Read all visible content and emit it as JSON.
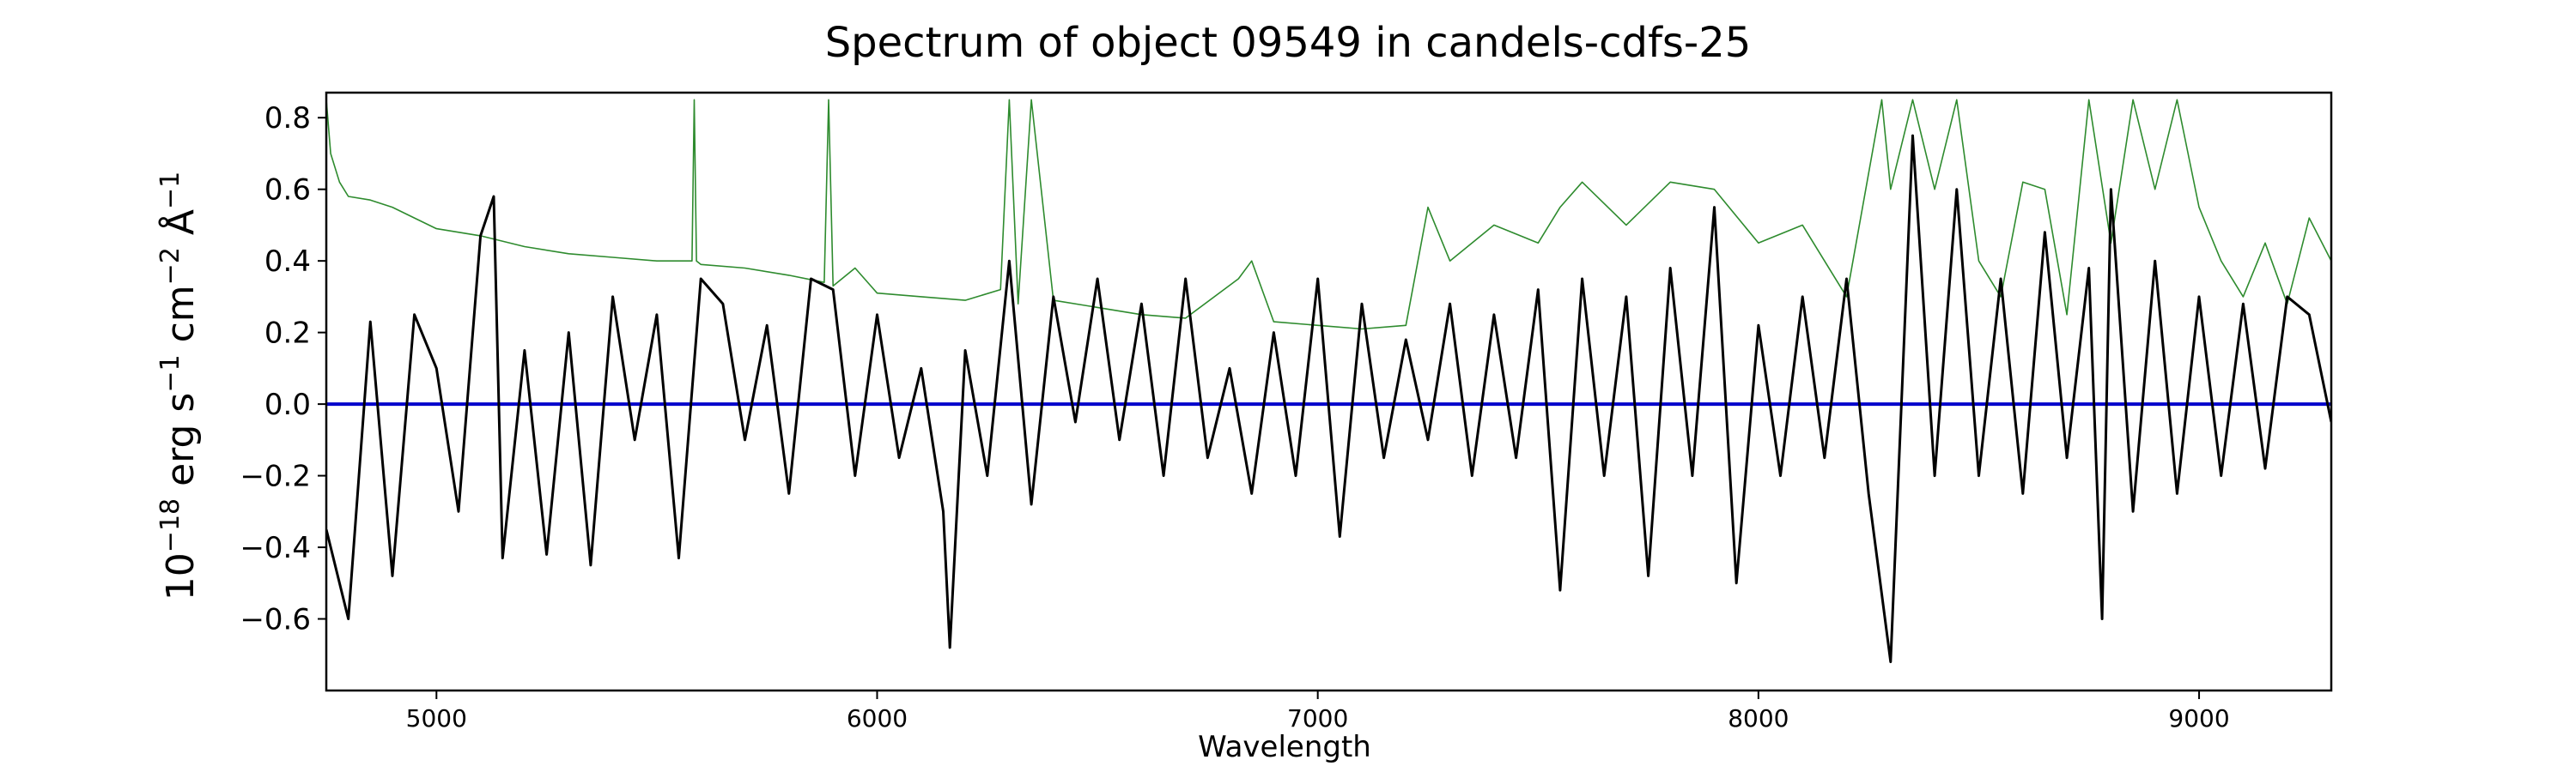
{
  "chart_data": {
    "type": "line",
    "title": "Spectrum of object 09549 in candels-cdfs-25",
    "xlabel": "Wavelength",
    "ylabel_base": "10",
    "ylabel_exp": "−18",
    "ylabel_unit_a": " erg s",
    "ylabel_unit_a_exp": "−1",
    "ylabel_unit_b": " cm",
    "ylabel_unit_b_exp": "−2",
    "ylabel_unit_c": " Å",
    "ylabel_unit_c_exp": "−1",
    "xlim": [
      4750,
      9300
    ],
    "ylim": [
      -0.8,
      0.87
    ],
    "xticks": [
      5000,
      6000,
      7000,
      8000,
      9000
    ],
    "xtick_labels": [
      "5000",
      "6000",
      "7000",
      "8000",
      "9000"
    ],
    "yticks": [
      -0.6,
      -0.4,
      -0.2,
      0.0,
      0.2,
      0.4,
      0.6,
      0.8
    ],
    "ytick_labels": [
      "−0.6",
      "−0.4",
      "−0.2",
      "0.0",
      "0.2",
      "0.4",
      "0.6",
      "0.8"
    ],
    "grid": false,
    "legend": "none",
    "series": [
      {
        "role": "flux",
        "color": "#000000",
        "x": [
          4750,
          4800,
          4850,
          4900,
          4950,
          5000,
          5050,
          5100,
          5130,
          5150,
          5200,
          5250,
          5300,
          5350,
          5400,
          5450,
          5500,
          5550,
          5600,
          5650,
          5700,
          5750,
          5800,
          5850,
          5900,
          5950,
          6000,
          6050,
          6100,
          6150,
          6165,
          6200,
          6250,
          6300,
          6350,
          6400,
          6450,
          6500,
          6550,
          6600,
          6650,
          6700,
          6750,
          6800,
          6850,
          6900,
          6950,
          7000,
          7050,
          7100,
          7150,
          7200,
          7250,
          7300,
          7350,
          7400,
          7450,
          7500,
          7550,
          7600,
          7650,
          7700,
          7750,
          7800,
          7850,
          7900,
          7950,
          8000,
          8050,
          8100,
          8150,
          8200,
          8250,
          8300,
          8350,
          8400,
          8450,
          8500,
          8550,
          8600,
          8650,
          8700,
          8750,
          8780,
          8800,
          8850,
          8900,
          8950,
          9000,
          9050,
          9100,
          9150,
          9200,
          9250,
          9300
        ],
        "y": [
          -0.35,
          -0.6,
          0.23,
          -0.48,
          0.25,
          0.1,
          -0.3,
          0.47,
          0.58,
          -0.43,
          0.15,
          -0.42,
          0.2,
          -0.45,
          0.3,
          -0.1,
          0.25,
          -0.43,
          0.35,
          0.28,
          -0.1,
          0.22,
          -0.25,
          0.35,
          0.32,
          -0.2,
          0.25,
          -0.15,
          0.1,
          -0.3,
          -0.68,
          0.15,
          -0.2,
          0.4,
          -0.28,
          0.3,
          -0.05,
          0.35,
          -0.1,
          0.28,
          -0.2,
          0.35,
          -0.15,
          0.1,
          -0.25,
          0.2,
          -0.2,
          0.35,
          -0.37,
          0.28,
          -0.15,
          0.18,
          -0.1,
          0.28,
          -0.2,
          0.25,
          -0.15,
          0.32,
          -0.52,
          0.35,
          -0.2,
          0.3,
          -0.48,
          0.38,
          -0.2,
          0.55,
          -0.5,
          0.22,
          -0.2,
          0.3,
          -0.15,
          0.35,
          -0.25,
          -0.72,
          0.75,
          -0.2,
          0.6,
          -0.2,
          0.35,
          -0.25,
          0.48,
          -0.15,
          0.38,
          -0.6,
          0.6,
          -0.3,
          0.4,
          -0.25,
          0.3,
          -0.2,
          0.28,
          -0.18,
          0.3,
          0.25,
          -0.05
        ]
      },
      {
        "role": "error",
        "color": "#2e8b2e",
        "x": [
          4750,
          4760,
          4780,
          4800,
          4850,
          4900,
          4950,
          5000,
          5100,
          5200,
          5300,
          5400,
          5500,
          5580,
          5585,
          5590,
          5600,
          5700,
          5800,
          5880,
          5890,
          5900,
          5950,
          6000,
          6100,
          6200,
          6280,
          6300,
          6320,
          6350,
          6400,
          6500,
          6600,
          6700,
          6820,
          6850,
          6900,
          7000,
          7100,
          7200,
          7250,
          7300,
          7400,
          7500,
          7550,
          7600,
          7700,
          7800,
          7900,
          8000,
          8100,
          8200,
          8280,
          8300,
          8350,
          8400,
          8450,
          8500,
          8550,
          8600,
          8650,
          8700,
          8750,
          8800,
          8850,
          8900,
          8950,
          9000,
          9050,
          9100,
          9150,
          9200,
          9250,
          9300
        ],
        "y": [
          0.85,
          0.7,
          0.62,
          0.58,
          0.57,
          0.55,
          0.52,
          0.49,
          0.47,
          0.44,
          0.42,
          0.41,
          0.4,
          0.4,
          0.85,
          0.4,
          0.39,
          0.38,
          0.36,
          0.34,
          0.85,
          0.33,
          0.38,
          0.31,
          0.3,
          0.29,
          0.32,
          0.85,
          0.28,
          0.85,
          0.29,
          0.27,
          0.25,
          0.24,
          0.35,
          0.4,
          0.23,
          0.22,
          0.21,
          0.22,
          0.55,
          0.4,
          0.5,
          0.45,
          0.55,
          0.62,
          0.5,
          0.62,
          0.6,
          0.45,
          0.5,
          0.3,
          0.85,
          0.6,
          0.85,
          0.6,
          0.85,
          0.4,
          0.3,
          0.62,
          0.6,
          0.25,
          0.85,
          0.45,
          0.85,
          0.6,
          0.85,
          0.55,
          0.4,
          0.3,
          0.45,
          0.28,
          0.52,
          0.4
        ]
      },
      {
        "role": "model",
        "color": "#0000cc",
        "x": [
          4750,
          9300
        ],
        "y": [
          0.0,
          0.0
        ]
      }
    ]
  }
}
